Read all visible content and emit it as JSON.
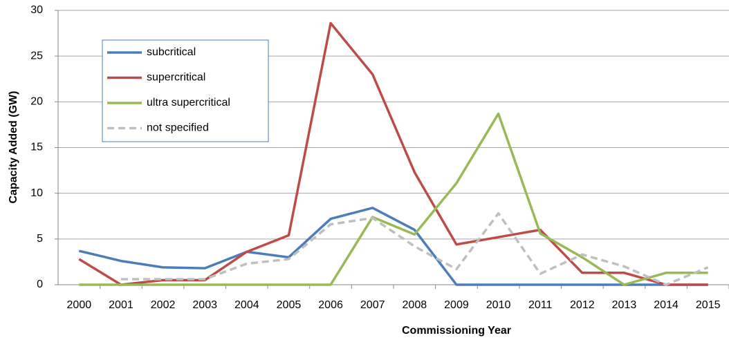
{
  "chart_data": {
    "type": "line",
    "x_label": "Commissioning Year",
    "y_label": "Capacity Added (GW)",
    "categories": [
      "2000",
      "2001",
      "2002",
      "2003",
      "2004",
      "2005",
      "2006",
      "2007",
      "2008",
      "2009",
      "2010",
      "2011",
      "2012",
      "2013",
      "2014",
      "2015"
    ],
    "series": [
      {
        "name": "subcritical",
        "color": "#4a7ebb",
        "values": [
          3.7,
          2.6,
          1.9,
          1.8,
          3.6,
          3.0,
          7.2,
          8.4,
          6.0,
          0,
          0,
          0,
          0,
          0,
          0,
          0
        ]
      },
      {
        "name": "supercritical",
        "color": "#be4b48",
        "values": [
          2.8,
          0,
          0.5,
          0.5,
          3.6,
          5.4,
          28.6,
          23.0,
          12.3,
          4.4,
          5.2,
          6.0,
          1.3,
          1.3,
          0,
          0
        ]
      },
      {
        "name": "ultra supercritical",
        "color": "#98b954",
        "values": [
          0,
          0,
          0,
          0,
          0,
          0,
          0,
          7.4,
          5.5,
          11.1,
          18.7,
          5.6,
          3.0,
          0,
          1.3,
          1.3
        ]
      },
      {
        "name": "not specified",
        "color": "#bfbfbf",
        "dashed": true,
        "values": [
          null,
          0.6,
          0.6,
          0.6,
          2.3,
          2.8,
          6.6,
          7.3,
          4.2,
          1.7,
          7.8,
          1.2,
          3.3,
          2.0,
          0,
          1.9
        ]
      }
    ],
    "ylim": [
      0,
      30
    ],
    "yticks": [
      0,
      5,
      10,
      15,
      20,
      25,
      30
    ],
    "grid": true,
    "legend": "upper left"
  }
}
